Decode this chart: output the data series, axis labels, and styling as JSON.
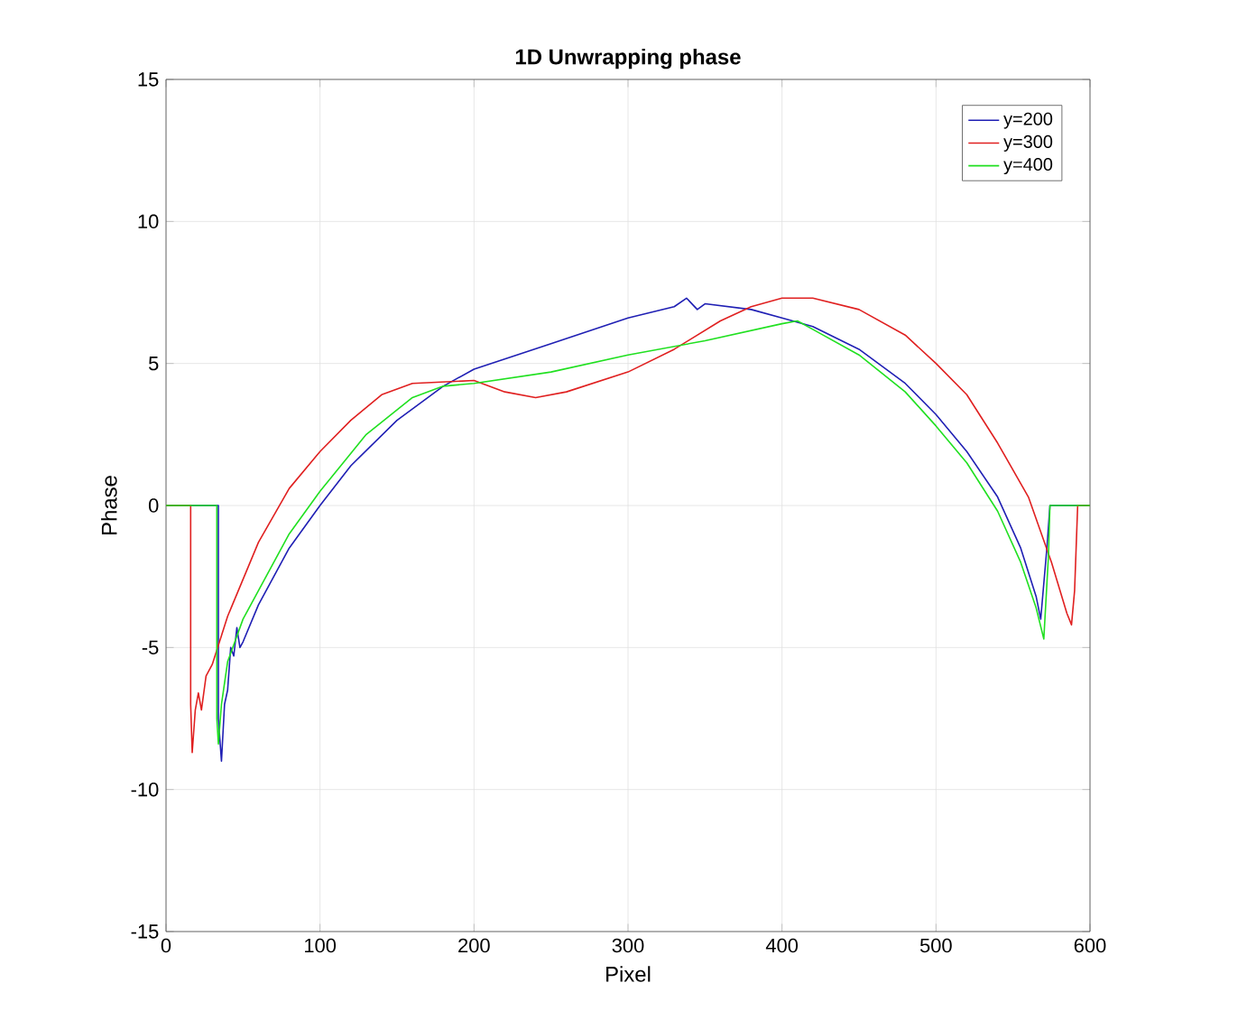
{
  "chart_data": {
    "type": "line",
    "title": "1D Unwrapping phase",
    "xlabel": "Pixel",
    "ylabel": "Phase",
    "xlim": [
      0,
      600
    ],
    "ylim": [
      -15,
      15
    ],
    "xticks": [
      0,
      100,
      200,
      300,
      400,
      500,
      600
    ],
    "yticks": [
      -15,
      -10,
      -5,
      0,
      5,
      10,
      15
    ],
    "grid": true,
    "legend": "top right",
    "marker": "none",
    "line_style": "solid",
    "series": [
      {
        "name": "y=200",
        "color": "#1f1fb4",
        "x": [
          0,
          34,
          34,
          36,
          38,
          40,
          42,
          44,
          46,
          48,
          50,
          60,
          80,
          100,
          120,
          150,
          180,
          200,
          250,
          300,
          330,
          338,
          345,
          350,
          380,
          400,
          420,
          450,
          480,
          500,
          520,
          540,
          555,
          565,
          568,
          572,
          574,
          600
        ],
        "values": [
          0,
          0,
          -7.5,
          -9,
          -7,
          -6.5,
          -5,
          -5.3,
          -4.3,
          -5,
          -4.8,
          -3.5,
          -1.5,
          0,
          1.4,
          3,
          4.2,
          4.8,
          5.7,
          6.6,
          7.0,
          7.3,
          6.9,
          7.1,
          6.9,
          6.6,
          6.3,
          5.5,
          4.3,
          3.2,
          1.9,
          0.3,
          -1.5,
          -3.2,
          -4,
          -1.5,
          0,
          0
        ]
      },
      {
        "name": "y=300",
        "color": "#e02020",
        "x": [
          0,
          16,
          16,
          17,
          19,
          21,
          23,
          26,
          30,
          40,
          60,
          80,
          100,
          120,
          140,
          160,
          200,
          220,
          240,
          260,
          300,
          330,
          360,
          380,
          400,
          420,
          450,
          480,
          500,
          520,
          540,
          560,
          575,
          585,
          588,
          590,
          592,
          600
        ],
        "values": [
          0,
          0,
          -7,
          -8.7,
          -7.2,
          -6.6,
          -7.2,
          -6,
          -5.6,
          -3.9,
          -1.3,
          0.6,
          1.9,
          3,
          3.9,
          4.3,
          4.4,
          4.0,
          3.8,
          4.0,
          4.7,
          5.5,
          6.5,
          7.0,
          7.3,
          7.3,
          6.9,
          6.0,
          5.0,
          3.9,
          2.2,
          0.3,
          -2,
          -3.8,
          -4.2,
          -3,
          0,
          0
        ]
      },
      {
        "name": "y=400",
        "color": "#20e020",
        "x": [
          0,
          33,
          33,
          34,
          36,
          40,
          50,
          60,
          80,
          100,
          130,
          160,
          180,
          200,
          250,
          300,
          350,
          400,
          410,
          420,
          450,
          480,
          500,
          520,
          540,
          555,
          565,
          570,
          573,
          574,
          600
        ],
        "values": [
          0,
          0,
          -7.5,
          -8.4,
          -7,
          -5.5,
          -4,
          -3,
          -1,
          0.5,
          2.5,
          3.8,
          4.2,
          4.3,
          4.7,
          5.3,
          5.8,
          6.4,
          6.5,
          6.2,
          5.3,
          4.0,
          2.8,
          1.5,
          -0.2,
          -2,
          -3.6,
          -4.7,
          -1.8,
          0,
          0
        ]
      }
    ]
  }
}
